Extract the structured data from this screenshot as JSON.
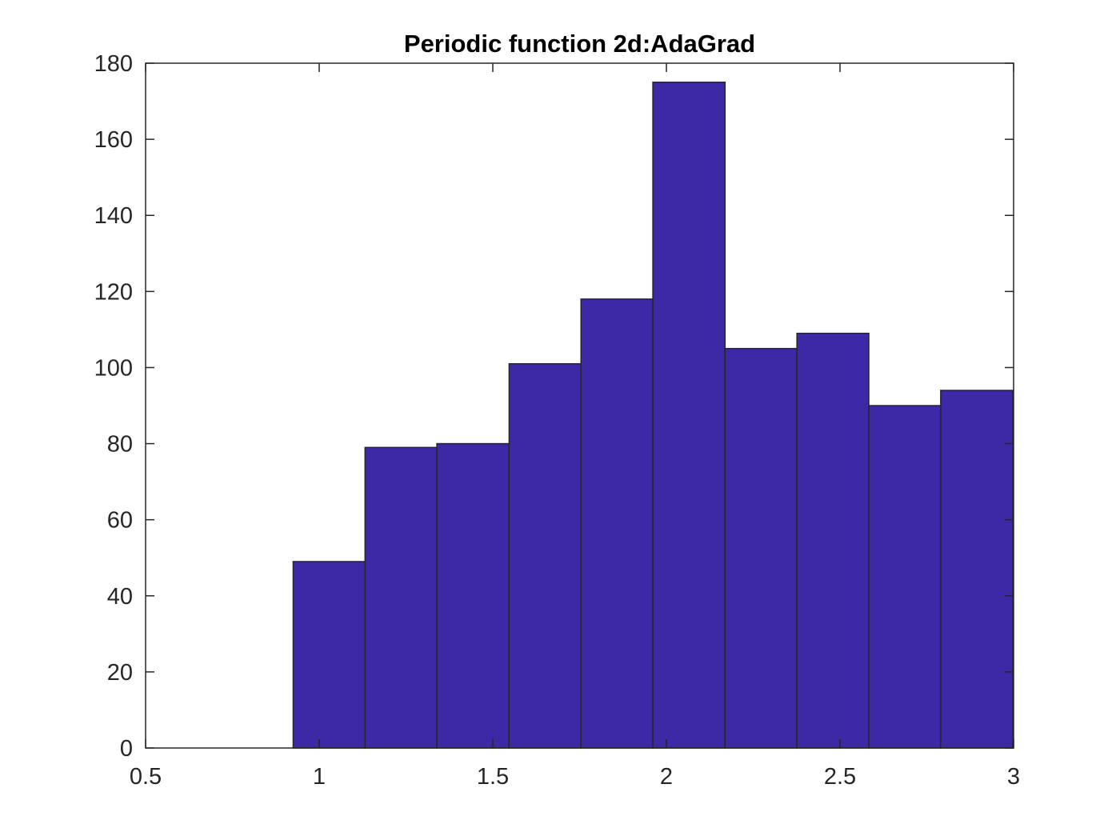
{
  "chart_data": {
    "type": "bar",
    "subtype": "histogram",
    "title": "Periodic function 2d:AdaGrad",
    "xlabel": "",
    "ylabel": "",
    "xlim": [
      0.5,
      3
    ],
    "ylim": [
      0,
      180
    ],
    "x_ticks": [
      0.5,
      1,
      1.5,
      2,
      2.5,
      3
    ],
    "x_tick_labels": [
      "0.5",
      "1",
      "1.5",
      "2",
      "2.5",
      "3"
    ],
    "y_ticks": [
      0,
      20,
      40,
      60,
      80,
      100,
      120,
      140,
      160,
      180
    ],
    "y_tick_labels": [
      "0",
      "20",
      "40",
      "60",
      "80",
      "100",
      "120",
      "140",
      "160",
      "180"
    ],
    "bin_edges": [
      0.925,
      1.132,
      1.339,
      1.547,
      1.754,
      1.961,
      2.169,
      2.376,
      2.583,
      2.79,
      2.998
    ],
    "values": [
      49,
      79,
      80,
      101,
      118,
      175,
      105,
      109,
      90,
      94
    ],
    "grid": false,
    "legend": "none",
    "colors": {
      "bar_fill": "#3d28a6",
      "bar_edge": "#262626",
      "axis": "#262626",
      "background": "#ffffff"
    }
  }
}
